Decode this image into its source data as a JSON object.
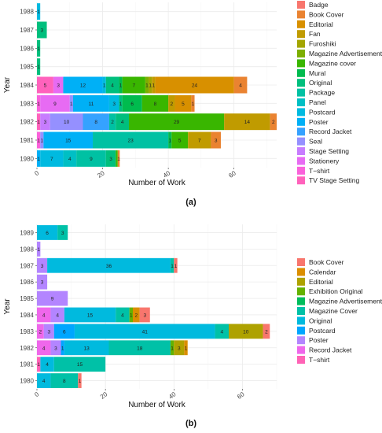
{
  "chart_data": [
    {
      "type": "bar",
      "orientation": "horizontal",
      "stacked": true,
      "panel_label": "(a)",
      "title": "",
      "xlabel": "Number of Work",
      "ylabel": "Year",
      "xlim": [
        0,
        73
      ],
      "xticks": [
        0,
        20,
        40,
        60
      ],
      "grid": true,
      "legend_position": "right",
      "categories": [
        "1980",
        "1981",
        "1982",
        "1983",
        "1984",
        "1985",
        "1986",
        "1987",
        "1988"
      ],
      "legend": [
        {
          "name": "Badge",
          "color": "#F8766D"
        },
        {
          "name": "Book Cover",
          "color": "#EA8331"
        },
        {
          "name": "Editorial",
          "color": "#D89000"
        },
        {
          "name": "Fan",
          "color": "#C09B00"
        },
        {
          "name": "Furoshiki",
          "color": "#A3A500"
        },
        {
          "name": "Magazine Advertisement",
          "color": "#7CAE00"
        },
        {
          "name": "Magazine cover",
          "color": "#39B600"
        },
        {
          "name": "Mural",
          "color": "#00BB4E"
        },
        {
          "name": "Original",
          "color": "#00BF7D"
        },
        {
          "name": "Package",
          "color": "#00C1A3"
        },
        {
          "name": "Panel",
          "color": "#00BFC4"
        },
        {
          "name": "Postcard",
          "color": "#00BAE0"
        },
        {
          "name": "Poster",
          "color": "#00B0F6"
        },
        {
          "name": "Record Jacket",
          "color": "#35A2FF"
        },
        {
          "name": "Seal",
          "color": "#9590FF"
        },
        {
          "name": "Stage Setting",
          "color": "#C77CFF"
        },
        {
          "name": "Stationery",
          "color": "#E76BF3"
        },
        {
          "name": "T−shirt",
          "color": "#FA62DB"
        },
        {
          "name": "TV Stage Setting",
          "color": "#FF62BC"
        }
      ],
      "bars": [
        {
          "year": "1980",
          "segments": [
            {
              "series": "Poster",
              "value": 1,
              "label": "1"
            },
            {
              "series": "Postcard",
              "value": 7,
              "label": "7"
            },
            {
              "series": "Panel",
              "value": 4,
              "label": "4"
            },
            {
              "series": "Package",
              "value": 9,
              "label": "9"
            },
            {
              "series": "Original",
              "value": 3,
              "label": "3"
            },
            {
              "series": "Magazine cover",
              "value": 0.6,
              "label": ""
            },
            {
              "series": "Book Cover",
              "value": 0.6,
              "label": "1"
            }
          ]
        },
        {
          "year": "1981",
          "segments": [
            {
              "series": "T−shirt",
              "value": 1,
              "label": "1"
            },
            {
              "series": "Seal",
              "value": 1,
              "label": "1"
            },
            {
              "series": "Poster",
              "value": 15,
              "label": "15"
            },
            {
              "series": "Package",
              "value": 23,
              "label": "23"
            },
            {
              "series": "Mural",
              "value": 1,
              "label": "1"
            },
            {
              "series": "Magazine cover",
              "value": 5,
              "label": "5"
            },
            {
              "series": "Fan",
              "value": 7,
              "label": "7"
            },
            {
              "series": "Book Cover",
              "value": 3,
              "label": "3"
            }
          ]
        },
        {
          "year": "1982",
          "segments": [
            {
              "series": "TV Stage Setting",
              "value": 1,
              "label": "1"
            },
            {
              "series": "Stage Setting",
              "value": 3,
              "label": "3"
            },
            {
              "series": "Seal",
              "value": 10,
              "label": "10"
            },
            {
              "series": "Record Jacket",
              "value": 8,
              "label": "8"
            },
            {
              "series": "Package",
              "value": 2,
              "label": "2"
            },
            {
              "series": "Original",
              "value": 4,
              "label": "4"
            },
            {
              "series": "Magazine cover",
              "value": 29,
              "label": "29"
            },
            {
              "series": "Fan",
              "value": 14,
              "label": "14"
            },
            {
              "series": "Book Cover",
              "value": 2,
              "label": "2"
            }
          ]
        },
        {
          "year": "1983",
          "segments": [
            {
              "series": "T−shirt",
              "value": 1,
              "label": "1"
            },
            {
              "series": "Stationery",
              "value": 9,
              "label": "9"
            },
            {
              "series": "Seal",
              "value": 1,
              "label": "1"
            },
            {
              "series": "Poster",
              "value": 11,
              "label": "11"
            },
            {
              "series": "Postcard",
              "value": 3,
              "label": "3"
            },
            {
              "series": "Original",
              "value": 1,
              "label": "1"
            },
            {
              "series": "Mural",
              "value": 6,
              "label": "6"
            },
            {
              "series": "Magazine cover",
              "value": 8,
              "label": "8"
            },
            {
              "series": "Fan",
              "value": 2,
              "label": "2"
            },
            {
              "series": "Editorial",
              "value": 5,
              "label": "5"
            },
            {
              "series": "Book Cover",
              "value": 1,
              "label": "1"
            }
          ]
        },
        {
          "year": "1984",
          "segments": [
            {
              "series": "TV Stage Setting",
              "value": 5,
              "label": "5"
            },
            {
              "series": "Stationery",
              "value": 3,
              "label": "3"
            },
            {
              "series": "Poster",
              "value": 12,
              "label": "12"
            },
            {
              "series": "Postcard",
              "value": 1,
              "label": "1"
            },
            {
              "series": "Original",
              "value": 4,
              "label": "4"
            },
            {
              "series": "Mural",
              "value": 1,
              "label": "1"
            },
            {
              "series": "Magazine cover",
              "value": 7,
              "label": "7"
            },
            {
              "series": "Magazine Advertisement",
              "value": 1,
              "label": "1"
            },
            {
              "series": "Furoshiki",
              "value": 1,
              "label": "1"
            },
            {
              "series": "Fan",
              "value": 1,
              "label": "1"
            },
            {
              "series": "Editorial",
              "value": 24,
              "label": "24"
            },
            {
              "series": "Book Cover",
              "value": 4,
              "label": "4"
            }
          ]
        },
        {
          "year": "1985",
          "segments": [
            {
              "series": "Original",
              "value": 1,
              "label": "1"
            }
          ]
        },
        {
          "year": "1986",
          "segments": [
            {
              "series": "Original",
              "value": 1,
              "label": "1"
            }
          ]
        },
        {
          "year": "1987",
          "segments": [
            {
              "series": "Original",
              "value": 3,
              "label": "3"
            }
          ]
        },
        {
          "year": "1988",
          "segments": [
            {
              "series": "Postcard",
              "value": 1,
              "label": "1"
            }
          ]
        }
      ]
    },
    {
      "type": "bar",
      "orientation": "horizontal",
      "stacked": true,
      "panel_label": "(b)",
      "title": "",
      "xlabel": "Number of Work",
      "ylabel": "Year",
      "xlim": [
        0,
        70
      ],
      "xticks": [
        0,
        20,
        40,
        60
      ],
      "grid": true,
      "legend_position": "right",
      "categories": [
        "1980",
        "1981",
        "1982",
        "1983",
        "1984",
        "1985",
        "1986",
        "1987",
        "1988",
        "1989"
      ],
      "legend": [
        {
          "name": "Book Cover",
          "color": "#F8766D"
        },
        {
          "name": "Calendar",
          "color": "#DB8E00"
        },
        {
          "name": "Editorial",
          "color": "#AEA200"
        },
        {
          "name": "Exhibition Original",
          "color": "#64B200"
        },
        {
          "name": "Magazine Advertisement",
          "color": "#00BD5C"
        },
        {
          "name": "Magazine Cover",
          "color": "#00C1A7"
        },
        {
          "name": "Original",
          "color": "#00BADE"
        },
        {
          "name": "Postcard",
          "color": "#00A6FF"
        },
        {
          "name": "Poster",
          "color": "#B385FF"
        },
        {
          "name": "Record Jacket",
          "color": "#EF67EB"
        },
        {
          "name": "T−shirt",
          "color": "#FF63B6"
        }
      ],
      "bars": [
        {
          "year": "1980",
          "segments": [
            {
              "series": "Original",
              "value": 4,
              "label": "4"
            },
            {
              "series": "Magazine Cover",
              "value": 8,
              "label": "8"
            },
            {
              "series": "Book Cover",
              "value": 1,
              "label": "1"
            }
          ]
        },
        {
          "year": "1981",
          "segments": [
            {
              "series": "T−shirt",
              "value": 1,
              "label": "1"
            },
            {
              "series": "Original",
              "value": 4,
              "label": "4"
            },
            {
              "series": "Magazine Cover",
              "value": 15,
              "label": "15"
            }
          ]
        },
        {
          "year": "1982",
          "segments": [
            {
              "series": "Record Jacket",
              "value": 4,
              "label": "4"
            },
            {
              "series": "Poster",
              "value": 3,
              "label": "3"
            },
            {
              "series": "Postcard",
              "value": 1,
              "label": "1"
            },
            {
              "series": "Original",
              "value": 13,
              "label": "13"
            },
            {
              "series": "Magazine Cover",
              "value": 18,
              "label": "18"
            },
            {
              "series": "Exhibition Original",
              "value": 1,
              "label": "1"
            },
            {
              "series": "Editorial",
              "value": 3,
              "label": "3"
            },
            {
              "series": "Calendar",
              "value": 1,
              "label": "1"
            }
          ]
        },
        {
          "year": "1983",
          "segments": [
            {
              "series": "Record Jacket",
              "value": 2,
              "label": "2"
            },
            {
              "series": "Poster",
              "value": 3,
              "label": "3"
            },
            {
              "series": "Postcard",
              "value": 6,
              "label": "6"
            },
            {
              "series": "Original",
              "value": 41,
              "label": "41"
            },
            {
              "series": "Magazine Cover",
              "value": 4,
              "label": "4"
            },
            {
              "series": "Editorial",
              "value": 10,
              "label": "10"
            },
            {
              "series": "Book Cover",
              "value": 2,
              "label": "2"
            }
          ]
        },
        {
          "year": "1984",
          "segments": [
            {
              "series": "Record Jacket",
              "value": 4,
              "label": "4"
            },
            {
              "series": "Poster",
              "value": 4,
              "label": "4"
            },
            {
              "series": "Original",
              "value": 15,
              "label": "15"
            },
            {
              "series": "Magazine Cover",
              "value": 4,
              "label": "4"
            },
            {
              "series": "Exhibition Original",
              "value": 1,
              "label": "1"
            },
            {
              "series": "Calendar",
              "value": 2,
              "label": "2"
            },
            {
              "series": "Book Cover",
              "value": 3,
              "label": "3"
            }
          ]
        },
        {
          "year": "1985",
          "segments": [
            {
              "series": "Poster",
              "value": 9,
              "label": "9"
            }
          ]
        },
        {
          "year": "1986",
          "segments": [
            {
              "series": "Poster",
              "value": 3,
              "label": "3"
            }
          ]
        },
        {
          "year": "1987",
          "segments": [
            {
              "series": "Poster",
              "value": 3,
              "label": "3"
            },
            {
              "series": "Original",
              "value": 36,
              "label": "36"
            },
            {
              "series": "Magazine Cover",
              "value": 1,
              "label": "1"
            },
            {
              "series": "Book Cover",
              "value": 1,
              "label": "1"
            }
          ]
        },
        {
          "year": "1988",
          "segments": [
            {
              "series": "Poster",
              "value": 1,
              "label": "1"
            }
          ]
        },
        {
          "year": "1989",
          "segments": [
            {
              "series": "Original",
              "value": 6,
              "label": "6"
            },
            {
              "series": "Magazine Cover",
              "value": 3,
              "label": "3"
            }
          ]
        }
      ]
    }
  ]
}
